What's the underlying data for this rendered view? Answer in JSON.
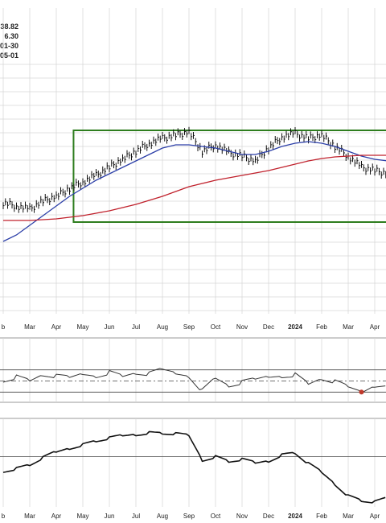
{
  "header_values": [
    "38.82",
    "6.30",
    "01-30",
    "05-01"
  ],
  "colors": {
    "price_bars": "#111111",
    "ma_short": "#2c3fa8",
    "ma_long": "#c0212c",
    "highlight_box": "#2e7d1e",
    "grid": "#d6d6d6",
    "panel_border": "#9a9a9a",
    "axis_text": "#222222",
    "rsi_marker": "#c0392b"
  },
  "chart_data": {
    "type": "line",
    "x_axis": {
      "labels": [
        "b",
        "Mar",
        "Apr",
        "May",
        "Jun",
        "Jul",
        "Aug",
        "Sep",
        "Oct",
        "Nov",
        "Dec",
        "2024",
        "Feb",
        "Mar",
        "Apr"
      ],
      "bold_label": "2024"
    },
    "panels": [
      {
        "name": "price",
        "type": "ohlc",
        "unit_note": "values are relative, on a 0-100 scale; the visible axis does not print price ticks",
        "ylim": [
          0,
          100
        ],
        "x": [
          0,
          0.5,
          1,
          1.5,
          2,
          2.5,
          3,
          3.5,
          4,
          4.5,
          5,
          5.5,
          6,
          6.5,
          7,
          7.5,
          8,
          8.5,
          9,
          9.5,
          10,
          10.5,
          11,
          11.5,
          12,
          12.5,
          13,
          13.5,
          14,
          14.5
        ],
        "close": [
          54,
          52,
          50,
          55,
          58,
          63,
          67,
          71,
          76,
          81,
          86,
          91,
          94,
          96,
          98,
          86,
          90,
          85,
          83,
          80,
          88,
          95,
          97,
          94,
          96,
          89,
          83,
          76,
          74,
          72
        ],
        "series": [
          {
            "name": "",
            "kind": "moving-average-short",
            "values": [
              30,
              34,
              40,
              46,
              52,
              58,
              63,
              68,
              72,
              76,
              80,
              84,
              88,
              90,
              90,
              89,
              88,
              86,
              84,
              84,
              86,
              89,
              91,
              92,
              91,
              89,
              86,
              83,
              81,
              80
            ]
          },
          {
            "name": "",
            "kind": "moving-average-long",
            "values": [
              43,
              43,
              43,
              43.5,
              44,
              45,
              46,
              47.5,
              49,
              51,
              53,
              55.5,
              58,
              61,
              64,
              66,
              68,
              69.5,
              71,
              72.5,
              74,
              76,
              78,
              80,
              81.5,
              82.5,
              83,
              83.5,
              83.5,
              83.5
            ]
          }
        ],
        "highlight_box": {
          "x_start": 2.65,
          "x_end": 14.7,
          "y_low": 42,
          "y_high": 100
        }
      },
      {
        "name": "oscillator",
        "type": "line",
        "ylim": [
          0,
          100
        ],
        "reference_lines": [
          70,
          50,
          30
        ],
        "x": [
          0,
          0.5,
          1,
          1.5,
          2,
          2.5,
          3,
          3.5,
          4,
          4.5,
          5,
          5.5,
          6,
          6.5,
          7,
          7.5,
          8,
          8.5,
          9,
          9.5,
          10,
          10.5,
          11,
          11.5,
          12,
          12.5,
          13,
          13.5,
          14,
          14.5
        ],
        "values": [
          52,
          58,
          50,
          62,
          58,
          55,
          63,
          60,
          66,
          58,
          65,
          62,
          70,
          64,
          60,
          33,
          55,
          42,
          47,
          52,
          58,
          60,
          62,
          44,
          55,
          48,
          38,
          30,
          43,
          46
        ],
        "marked_point": {
          "x": 13.5,
          "value": 30
        }
      },
      {
        "name": "relative-line",
        "type": "line",
        "ylim": [
          0,
          100
        ],
        "reference_lines": [
          60
        ],
        "x": [
          0,
          0.5,
          1,
          1.5,
          2,
          2.5,
          3,
          3.5,
          4,
          4.5,
          5,
          5.5,
          6,
          6.5,
          7,
          7.5,
          8,
          8.5,
          9,
          9.5,
          10,
          10.5,
          11,
          11.5,
          12,
          12.5,
          13,
          13.5,
          14,
          14.5
        ],
        "values": [
          47,
          50,
          54,
          62,
          69,
          74,
          78,
          82,
          85,
          88,
          90,
          92,
          91,
          90,
          88,
          60,
          64,
          58,
          60,
          56,
          59,
          66,
          68,
          55,
          45,
          32,
          18,
          12,
          10,
          15
        ]
      }
    ]
  }
}
